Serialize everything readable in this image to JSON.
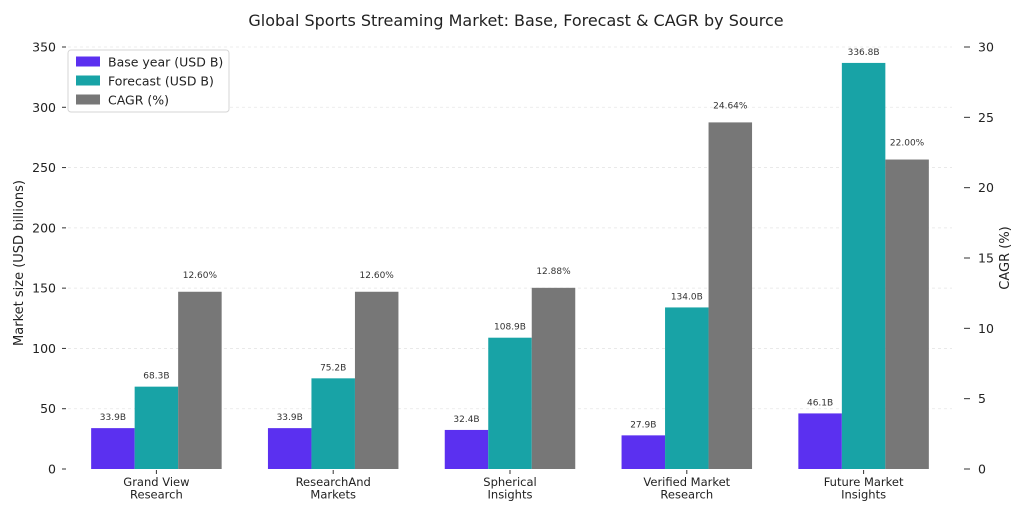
{
  "chart_data": {
    "type": "bar",
    "title": "Global Sports Streaming Market: Base, Forecast & CAGR by Source",
    "ylabel": "Market size (USD billions)",
    "y2label": "CAGR (%)",
    "categories": [
      [
        "Grand View",
        "Research"
      ],
      [
        "ResearchAnd",
        "Markets"
      ],
      [
        "Spherical",
        "Insights"
      ],
      [
        "Verified Market",
        "Research"
      ],
      [
        "Future Market",
        "Insights"
      ]
    ],
    "series": [
      {
        "name": "Base year (USD B)",
        "axis": "left",
        "values": [
          33.9,
          33.9,
          32.4,
          27.9,
          46.1
        ],
        "labels": [
          "33.9B",
          "33.9B",
          "32.4B",
          "27.9B",
          "46.1B"
        ],
        "color": "#5b30f0"
      },
      {
        "name": "Forecast (USD B)",
        "axis": "left",
        "values": [
          68.3,
          75.2,
          108.9,
          134.0,
          336.8
        ],
        "labels": [
          "68.3B",
          "75.2B",
          "108.9B",
          "134.0B",
          "336.8B"
        ],
        "color": "#18a3a6"
      },
      {
        "name": "CAGR (%)",
        "axis": "right",
        "values": [
          12.6,
          12.6,
          12.88,
          24.64,
          22.0
        ],
        "labels": [
          "12.60%",
          "12.60%",
          "12.88%",
          "24.64%",
          "22.00%"
        ],
        "color": "#777777"
      }
    ],
    "ylim": [
      0,
      350
    ],
    "yticks": [
      0,
      50,
      100,
      150,
      200,
      250,
      300,
      350
    ],
    "y2lim": [
      0,
      30
    ],
    "y2ticks": [
      0,
      5,
      10,
      15,
      20,
      25,
      30
    ],
    "grid": "horizontal dashed",
    "legend_position": "top-left"
  }
}
